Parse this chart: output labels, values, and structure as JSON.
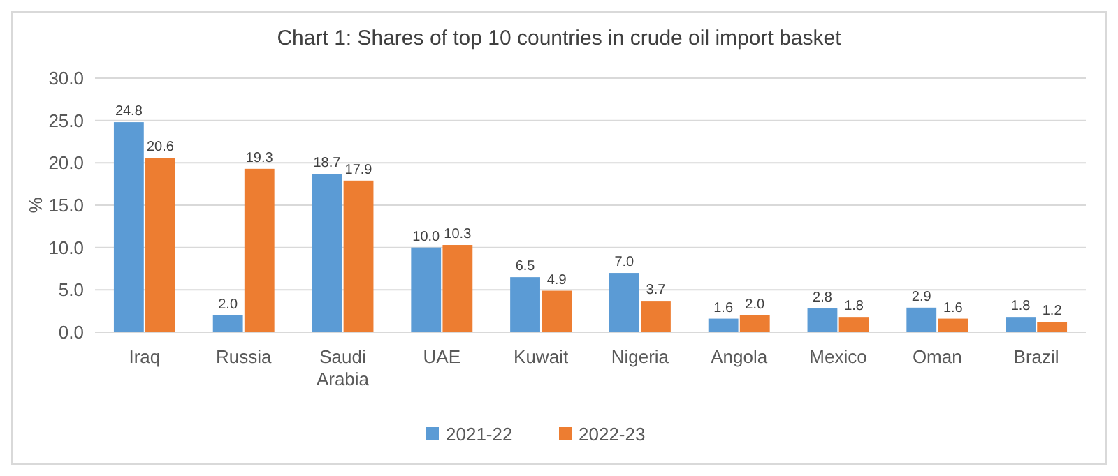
{
  "chart_data": {
    "type": "bar",
    "title": "Chart 1: Shares of top 10 countries in crude oil import basket",
    "ylabel": "%",
    "categories": [
      "Iraq",
      "Russia",
      "Saudi Arabia",
      "UAE",
      "Kuwait",
      "Nigeria",
      "Angola",
      "Mexico",
      "Oman",
      "Brazil"
    ],
    "series": [
      {
        "name": "2021-22",
        "color": "#5b9bd5",
        "values": [
          24.8,
          2.0,
          18.7,
          10.0,
          6.5,
          7.0,
          1.6,
          2.8,
          2.9,
          1.8
        ],
        "value_labels": [
          "24.8",
          "2.0",
          "18.7",
          "10.0",
          "6.5",
          "7.0",
          "1.6",
          "2.8",
          "2.9",
          "1.8"
        ]
      },
      {
        "name": "2022-23",
        "color": "#ed7d31",
        "values": [
          20.6,
          19.3,
          17.9,
          10.3,
          4.9,
          3.7,
          2.0,
          1.8,
          1.6,
          1.2
        ],
        "value_labels": [
          "20.6",
          "19.3",
          "17.9",
          "10.3",
          "4.9",
          "3.7",
          "2.0",
          "1.8",
          "1.6",
          "1.2"
        ]
      }
    ],
    "ylim": [
      0,
      30
    ],
    "yticks": [
      {
        "value": 0,
        "label": "0.0"
      },
      {
        "value": 5,
        "label": "5.0"
      },
      {
        "value": 10,
        "label": "10.0"
      },
      {
        "value": 15,
        "label": "15.0"
      },
      {
        "value": 20,
        "label": "20.0"
      },
      {
        "value": 25,
        "label": "25.0"
      },
      {
        "value": 30,
        "label": "30.0"
      }
    ],
    "grid": "y",
    "legend": "bottom"
  }
}
